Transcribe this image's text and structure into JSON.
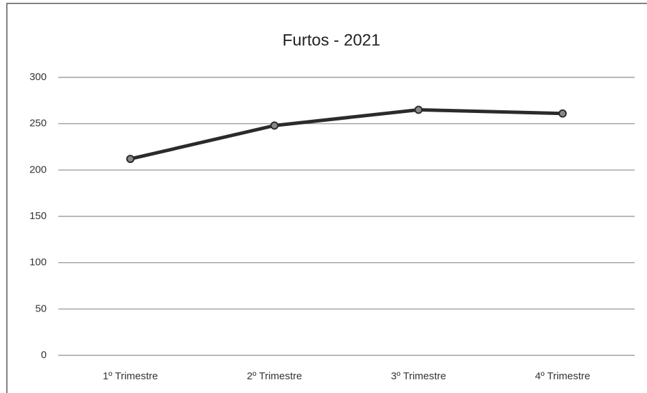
{
  "chart_data": {
    "type": "line",
    "title": "Furtos - 2021",
    "categories": [
      "1º Trimestre",
      "2º Trimestre",
      "3º Trimestre",
      "4º Trimestre"
    ],
    "values": [
      212,
      248,
      265,
      261
    ],
    "color": "#2b2b2b",
    "ylim": [
      0,
      300
    ],
    "yticks": [
      0,
      50,
      100,
      150,
      200,
      250,
      300
    ],
    "grid": true
  }
}
